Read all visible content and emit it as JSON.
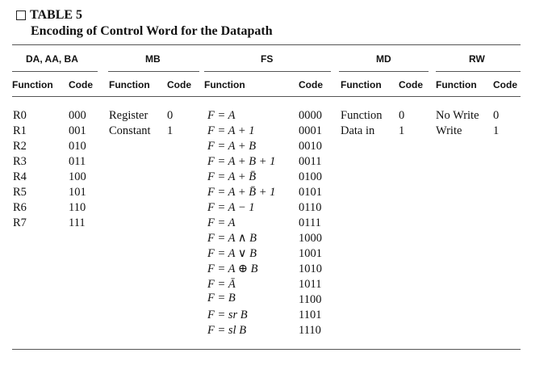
{
  "table": {
    "label": "TABLE 5",
    "caption": "Encoding of Control Word for the Datapath",
    "group_headers": [
      "DA, AA, BA",
      "MB",
      "FS",
      "MD",
      "RW"
    ],
    "sub_headers": {
      "da": [
        "Function",
        "Code"
      ],
      "mb": [
        "Function",
        "Code"
      ],
      "fs": [
        "Function",
        "Code"
      ],
      "md": [
        "Function",
        "Code"
      ],
      "rw": [
        "Function",
        "Code"
      ]
    },
    "da_rows": [
      {
        "fn": "R0",
        "code": "000"
      },
      {
        "fn": "R1",
        "code": "001"
      },
      {
        "fn": "R2",
        "code": "010"
      },
      {
        "fn": "R3",
        "code": "011"
      },
      {
        "fn": "R4",
        "code": "100"
      },
      {
        "fn": "R5",
        "code": "101"
      },
      {
        "fn": "R6",
        "code": "110"
      },
      {
        "fn": "R7",
        "code": "111"
      }
    ],
    "mb_rows": [
      {
        "fn": "Register",
        "code": "0"
      },
      {
        "fn": "Constant",
        "code": "1"
      }
    ],
    "fs_rows": [
      {
        "fn": "F = A",
        "code": "0000"
      },
      {
        "fn": "F = A + 1",
        "code": "0001"
      },
      {
        "fn": "F = A + B",
        "code": "0010"
      },
      {
        "fn": "F = A + B + 1",
        "code": "0011"
      },
      {
        "fn": "F = A + B̄",
        "code": "0100"
      },
      {
        "fn": "F = A + B̄ + 1",
        "code": "0101"
      },
      {
        "fn": "F = A − 1",
        "code": "0110"
      },
      {
        "fn": "F = A",
        "code": "0111"
      },
      {
        "fn": "F = A ∧ B",
        "code": "1000"
      },
      {
        "fn": "F = A ∨ B",
        "code": "1001"
      },
      {
        "fn": "F = A ⊕ B",
        "code": "1010"
      },
      {
        "fn": "F = Ā",
        "code": "1011"
      },
      {
        "fn": "F = B",
        "code": "1100"
      },
      {
        "fn": "F = sr B",
        "code": "1101"
      },
      {
        "fn": "F = sl B",
        "code": "1110"
      }
    ],
    "md_rows": [
      {
        "fn": "Function",
        "code": "0"
      },
      {
        "fn": "Data in",
        "code": "1"
      }
    ],
    "rw_rows": [
      {
        "fn": "No Write",
        "code": "0"
      },
      {
        "fn": "Write",
        "code": "1"
      }
    ]
  }
}
